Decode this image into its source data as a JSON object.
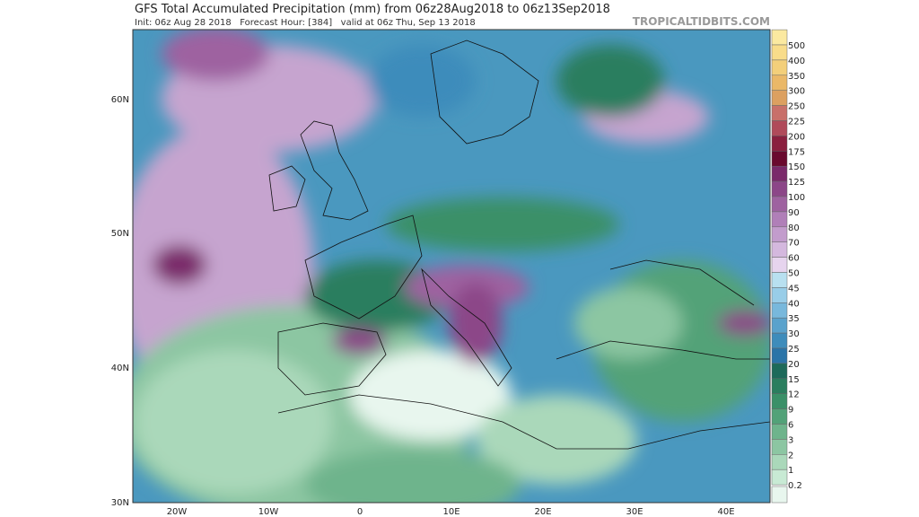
{
  "header": {
    "title": "GFS Total Accumulated Precipitation (mm) from 06z28Aug2018 to 06z13Sep2018",
    "subtitle": "Init: 06z Aug 28 2018   Forecast Hour: [384]   valid at 06z Thu, Sep 13 2018",
    "source": "TROPICALTIDBITS.COM"
  },
  "map": {
    "lat_labels": [
      "60N",
      "50N",
      "40N",
      "30N"
    ],
    "lon_labels": [
      "20W",
      "10W",
      "0",
      "10E",
      "20E",
      "30E",
      "40E"
    ]
  },
  "colorbar": {
    "levels": [
      500,
      400,
      350,
      300,
      250,
      225,
      200,
      175,
      150,
      125,
      100,
      90,
      80,
      70,
      60,
      50,
      45,
      40,
      35,
      30,
      25,
      20,
      15,
      12,
      9,
      6,
      3,
      2,
      1,
      0.2
    ],
    "colors": [
      "#fbe9a0",
      "#f8dc8a",
      "#f3cf7a",
      "#eab868",
      "#dca060",
      "#c8706a",
      "#b04a5a",
      "#8a1f3e",
      "#6a0a2e",
      "#7a2a6a",
      "#8c4688",
      "#9e62a0",
      "#b07fb8",
      "#c29ccc",
      "#d4b8de",
      "#e6d4ee",
      "#b8e0f0",
      "#98cde8",
      "#78b8dc",
      "#5aa2cc",
      "#3e8cbb",
      "#2a74a8",
      "#1e6a5a",
      "#2a7e5e",
      "#3a9068",
      "#52a278",
      "#6eb48c",
      "#8cc6a2",
      "#aad8ba",
      "#c8ead4"
    ]
  }
}
